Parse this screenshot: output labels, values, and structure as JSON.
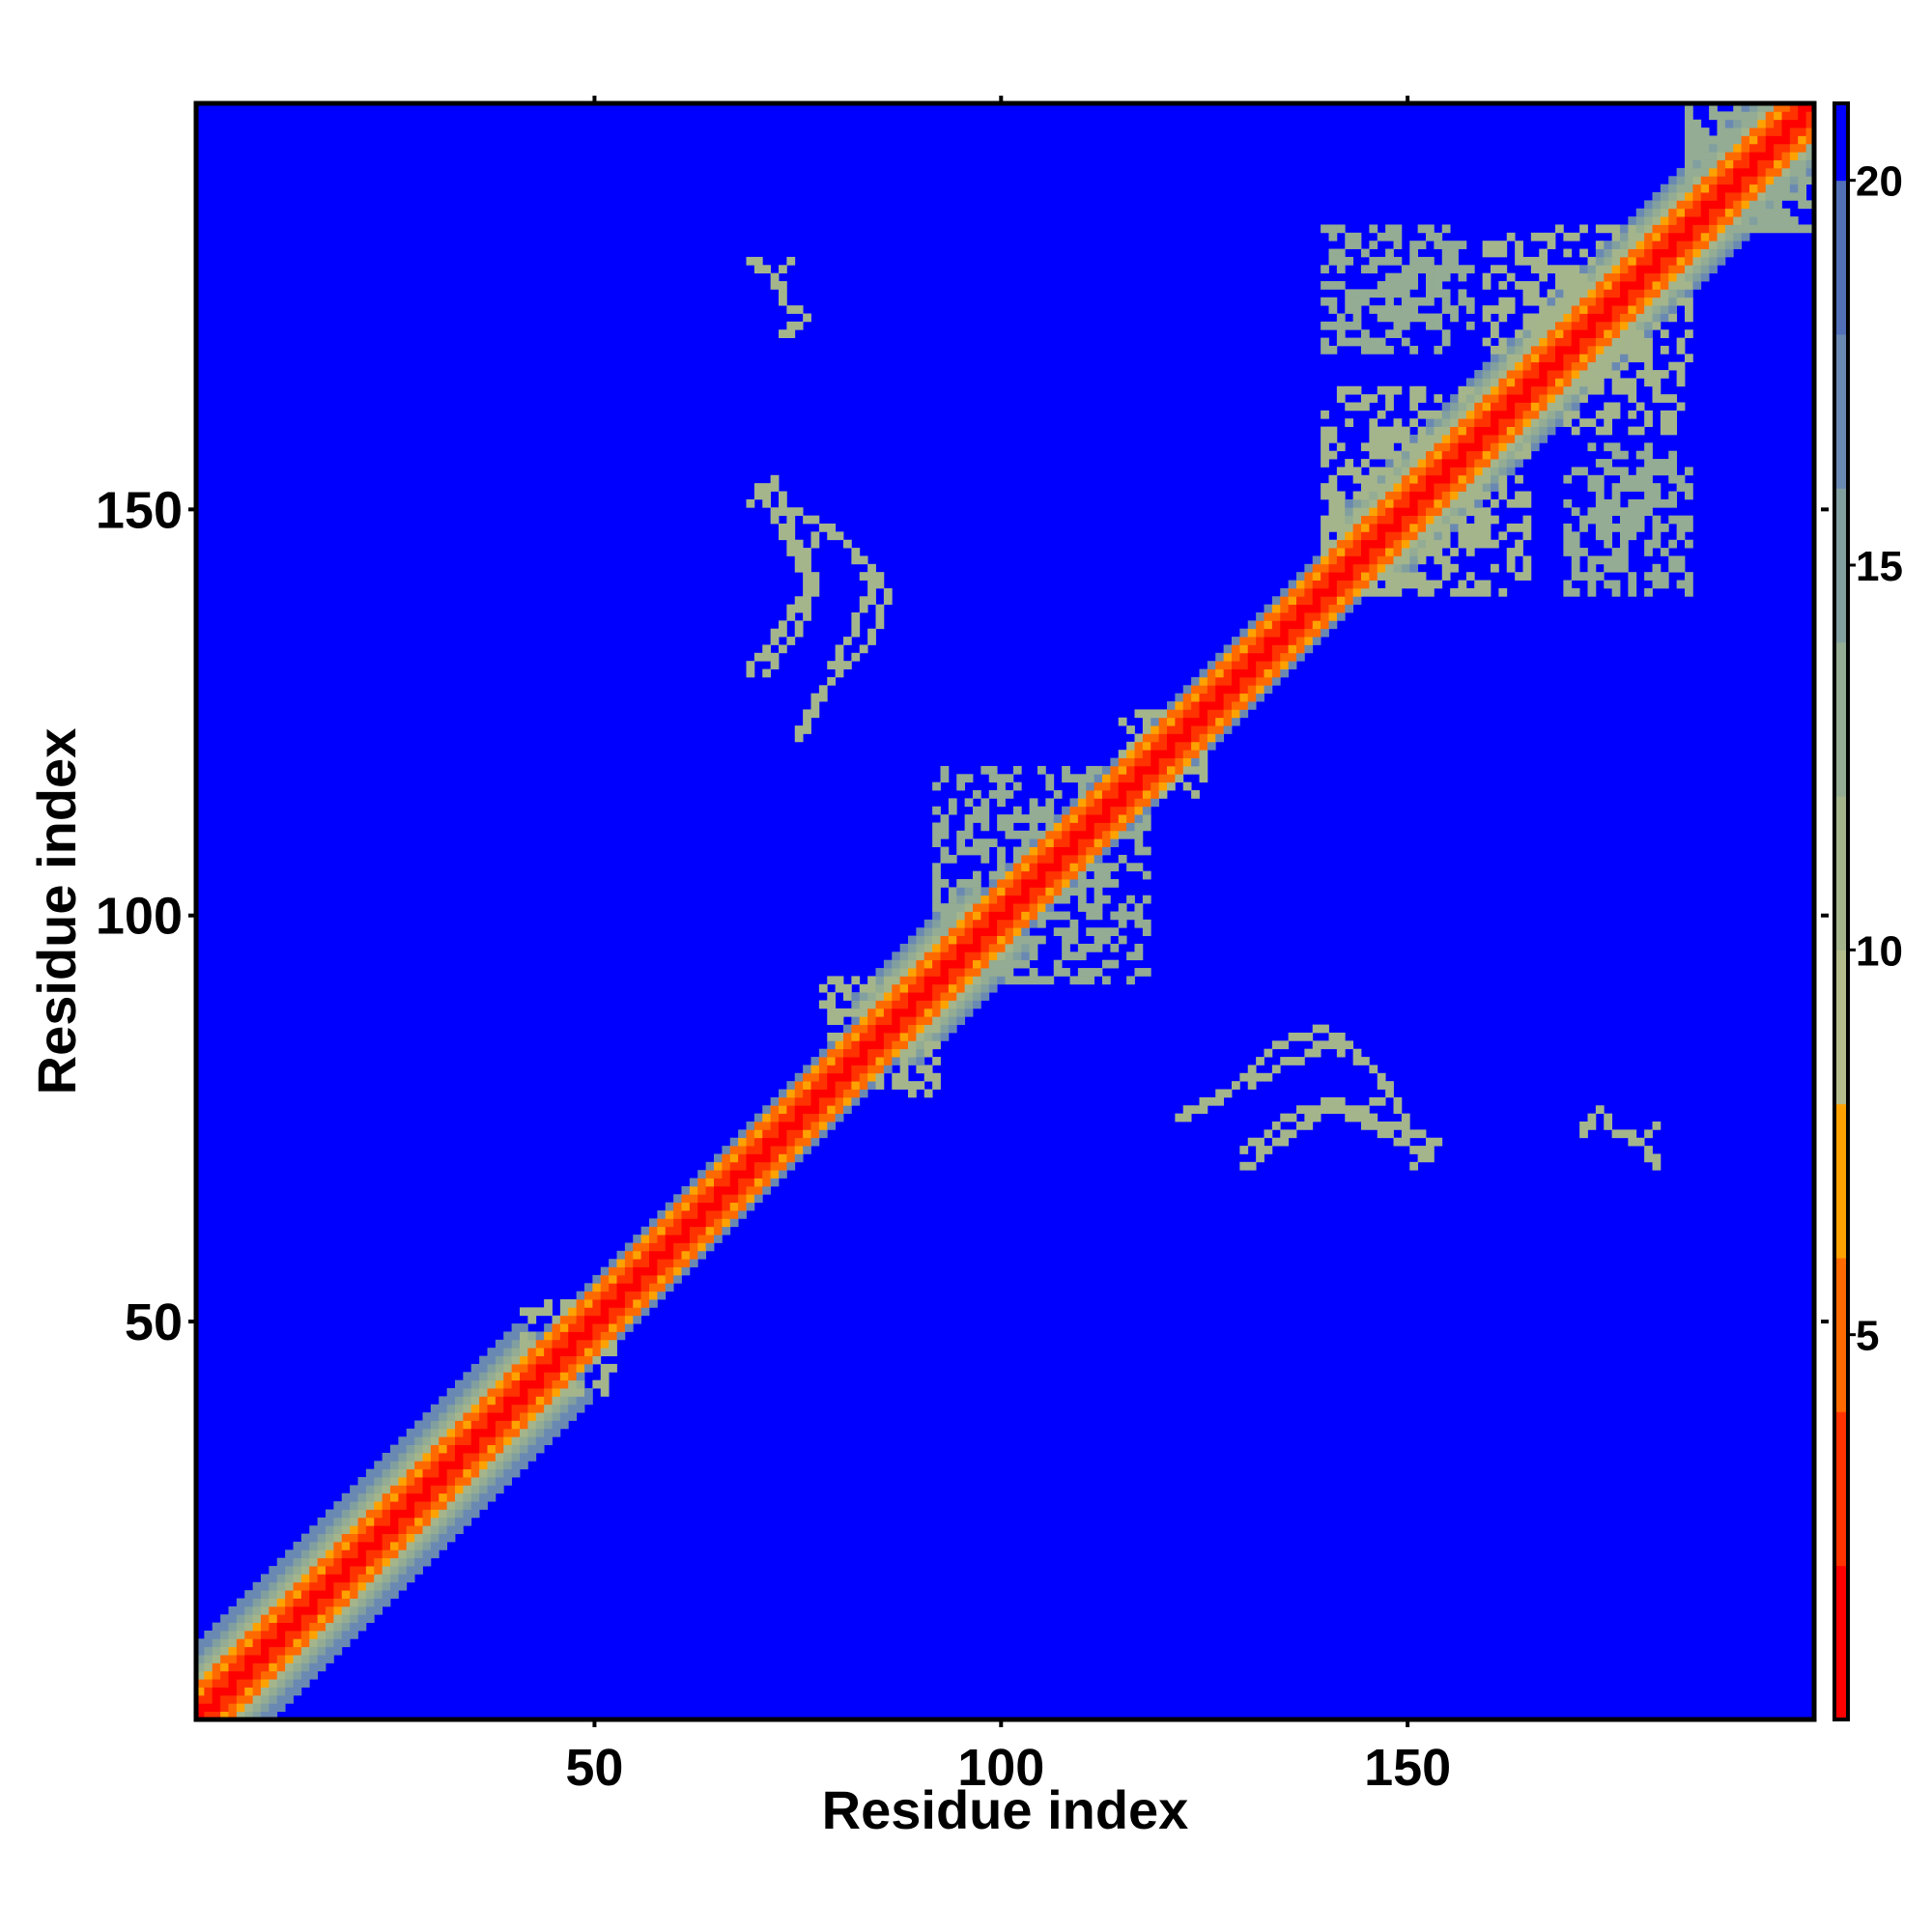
{
  "chart_data": {
    "type": "heatmap",
    "xlabel": "Residue index",
    "ylabel": "Residue index",
    "n_residues": 200,
    "xlim": [
      1,
      200
    ],
    "ylim": [
      1,
      200
    ],
    "x_ticks": [
      50,
      100,
      150
    ],
    "y_ticks": [
      50,
      100,
      150
    ],
    "colorbar": {
      "range": [
        0,
        21
      ],
      "ticks": [
        5,
        10,
        15,
        20
      ],
      "colors": [
        {
          "max": 2,
          "color": "#ff0000"
        },
        {
          "max": 4,
          "color": "#ff3300"
        },
        {
          "max": 6,
          "color": "#ff6a00"
        },
        {
          "max": 8,
          "color": "#ffa200"
        },
        {
          "max": 10,
          "color": "#b4bc8c"
        },
        {
          "max": 12,
          "color": "#a4b58c"
        },
        {
          "max": 14,
          "color": "#93ac93"
        },
        {
          "max": 16,
          "color": "#829fa0"
        },
        {
          "max": 18,
          "color": "#6a89b2"
        },
        {
          "max": 20,
          "color": "#5270b8"
        },
        {
          "max": 21,
          "color": "#0000ff"
        }
      ],
      "background_value": 21
    },
    "diagonal_band": {
      "core_distance_max": 4,
      "segments": [
        {
          "start": 1,
          "end": 45,
          "band_width": 9
        },
        {
          "start": 45,
          "end": 85,
          "band_width": 5
        },
        {
          "start": 85,
          "end": 100,
          "band_width": 8
        },
        {
          "start": 100,
          "end": 145,
          "band_width": 5
        },
        {
          "start": 145,
          "end": 200,
          "band_width": 8
        }
      ]
    },
    "contact_clusters": [
      {
        "i_range": [
          41,
          48
        ],
        "j_range": [
          45,
          52
        ],
        "value": 12
      },
      {
        "i_range": [
          78,
          88
        ],
        "j_range": [
          80,
          92
        ],
        "value": 12
      },
      {
        "i_range": [
          92,
          112
        ],
        "j_range": [
          98,
          118
        ],
        "value": 13
      },
      {
        "i_range": [
          115,
          125
        ],
        "j_range": [
          115,
          125
        ],
        "value": 12
      },
      {
        "i_range": [
          140,
          160
        ],
        "j_range": [
          145,
          165
        ],
        "value": 12
      },
      {
        "i_range": [
          148,
          158
        ],
        "j_range": [
          173,
          183
        ],
        "value": 13
      },
      {
        "i_range": [
          170,
          185
        ],
        "j_range": [
          140,
          155
        ],
        "value": 13
      },
      {
        "i_range": [
          160,
          180
        ],
        "j_range": [
          165,
          185
        ],
        "value": 12
      },
      {
        "i_range": [
          185,
          198
        ],
        "j_range": [
          185,
          200
        ],
        "value": 14
      }
    ],
    "contact_curves": [
      {
        "points": [
          [
            69,
            151
          ],
          [
            72,
            154
          ],
          [
            74,
            148
          ],
          [
            76,
            140
          ],
          [
            72,
            134
          ],
          [
            69,
            130
          ]
        ],
        "value": 11
      },
      {
        "points": [
          [
            75,
            143
          ],
          [
            78,
            148
          ],
          [
            82,
            145
          ],
          [
            84,
            140
          ],
          [
            81,
            134
          ],
          [
            79,
            130
          ]
        ],
        "value": 11
      },
      {
        "points": [
          [
            122,
            75
          ],
          [
            128,
            78
          ],
          [
            134,
            84
          ],
          [
            140,
            86
          ],
          [
            145,
            82
          ],
          [
            148,
            78
          ],
          [
            150,
            74
          ]
        ],
        "value": 11
      },
      {
        "points": [
          [
            130,
            71
          ],
          [
            135,
            75
          ],
          [
            141,
            77
          ],
          [
            147,
            73
          ],
          [
            153,
            70
          ]
        ],
        "value": 11
      },
      {
        "points": [
          [
            69,
            181
          ],
          [
            70,
            180
          ],
          [
            72,
            179
          ],
          [
            74,
            181
          ]
        ],
        "value": 11
      },
      {
        "points": [
          [
            172,
            73
          ],
          [
            174,
            76
          ],
          [
            176,
            73
          ],
          [
            179,
            72
          ]
        ],
        "value": 11
      }
    ]
  }
}
